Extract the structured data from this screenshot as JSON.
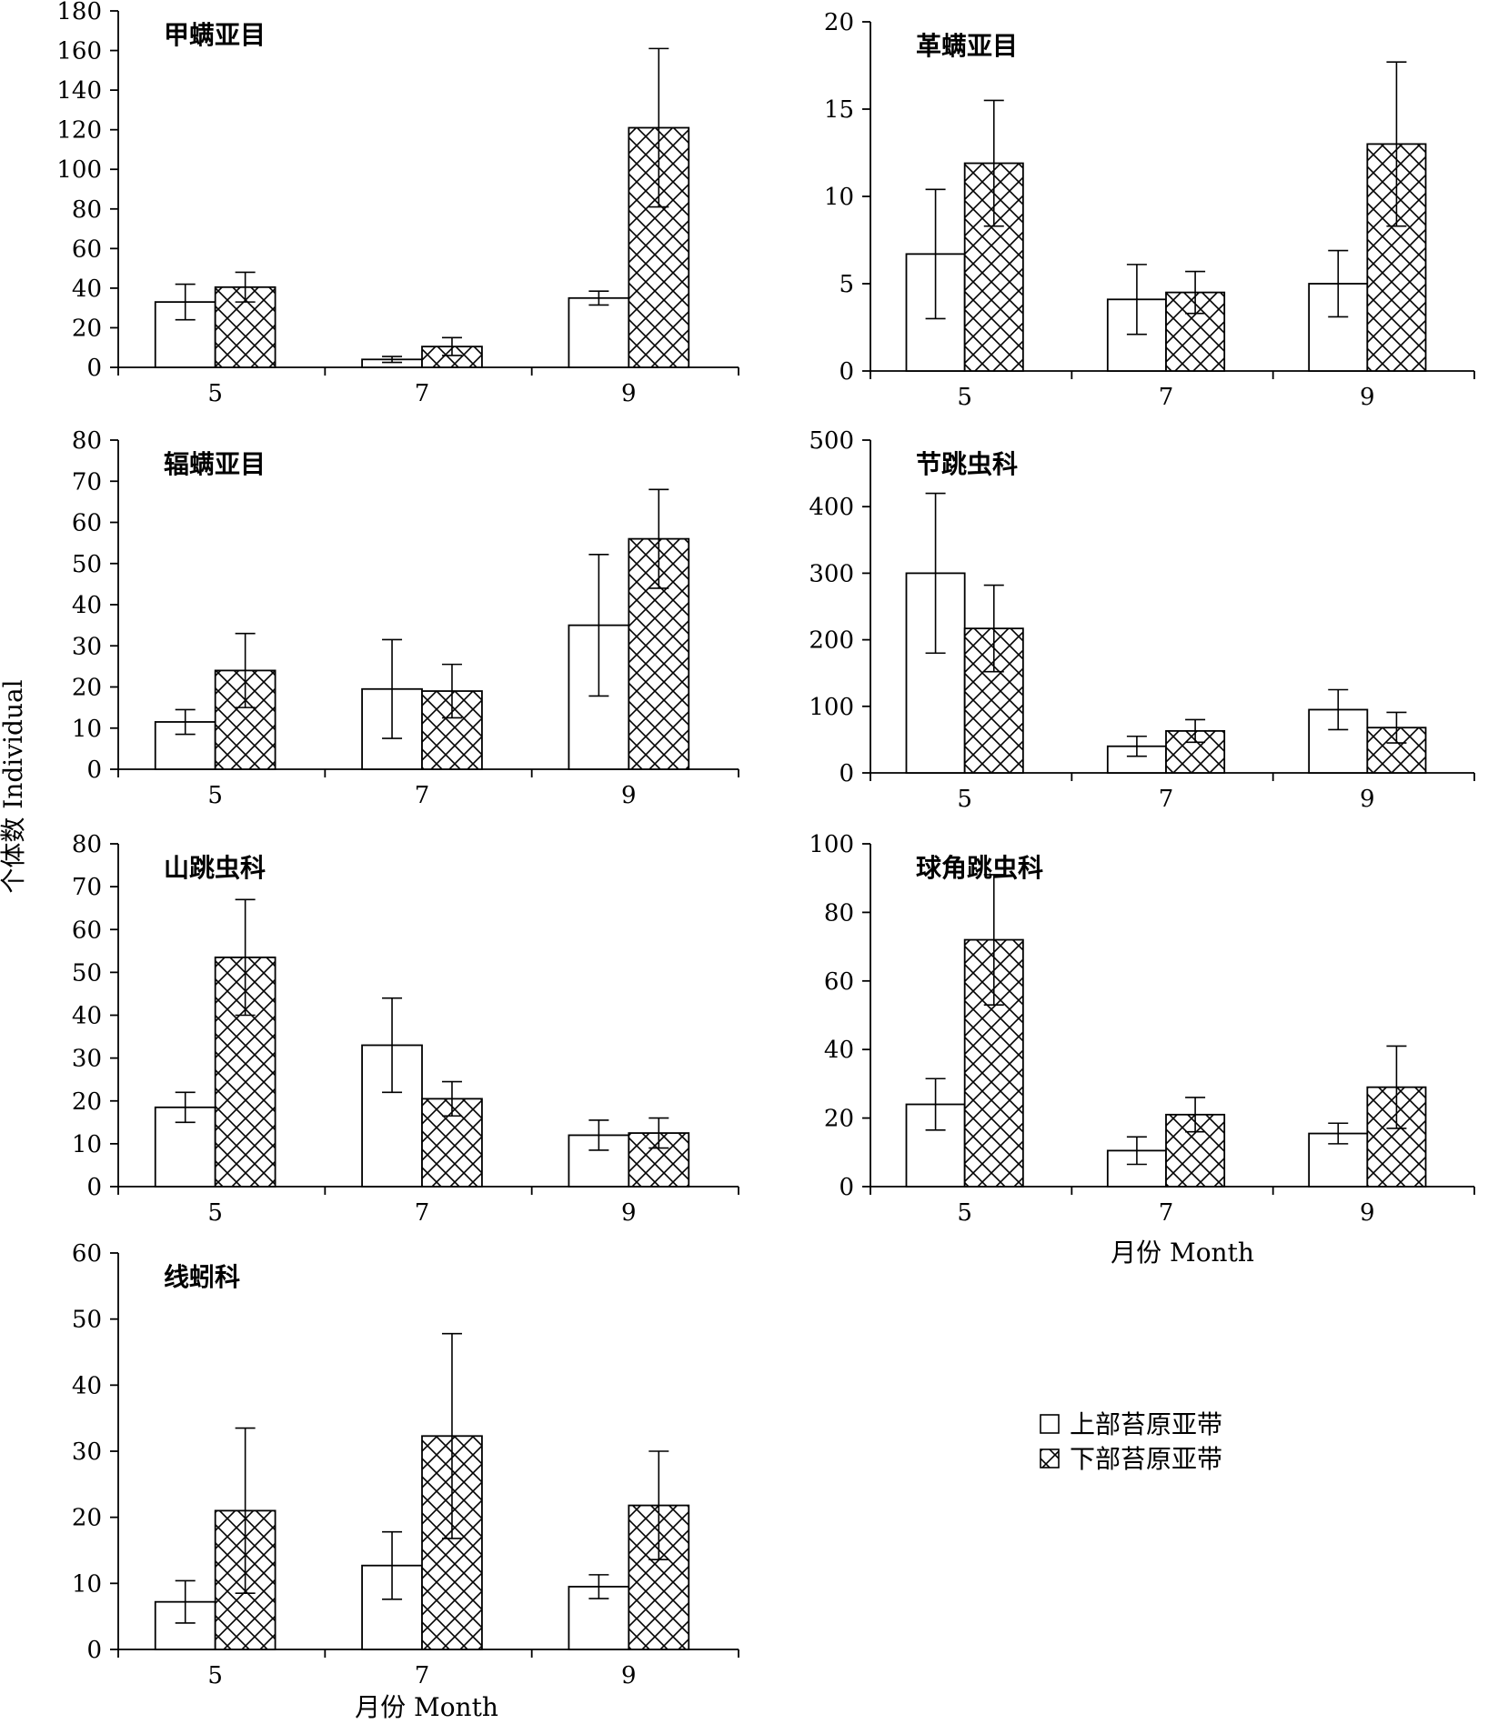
{
  "figure": {
    "ylabel": "个体数 Individual",
    "xlabel": "月份 Month",
    "legend": {
      "placement": "bottom-right",
      "items": [
        {
          "label": "上部苔原亚带",
          "pattern": "open"
        },
        {
          "label": "下部苔原亚带",
          "pattern": "crosshatch"
        }
      ]
    }
  },
  "chart_data": [
    {
      "type": "bar",
      "title": "甲螨亚目",
      "categories": [
        "5",
        "7",
        "9"
      ],
      "ylim": [
        0,
        180
      ],
      "yticks": [
        0,
        20,
        40,
        60,
        80,
        100,
        120,
        140,
        160,
        180
      ],
      "series": [
        {
          "name": "上部苔原亚带",
          "values": [
            33,
            4,
            35
          ],
          "errors": [
            9,
            1.5,
            3.5
          ]
        },
        {
          "name": "下部苔原亚带",
          "values": [
            40.5,
            10.5,
            121
          ],
          "errors": [
            7.5,
            4.5,
            40
          ]
        }
      ]
    },
    {
      "type": "bar",
      "title": "革螨亚目",
      "categories": [
        "5",
        "7",
        "9"
      ],
      "ylim": [
        0,
        20
      ],
      "yticks": [
        0,
        5,
        10,
        15,
        20
      ],
      "series": [
        {
          "name": "上部苔原亚带",
          "values": [
            6.7,
            4.1,
            5
          ],
          "errors": [
            3.7,
            2,
            1.9
          ]
        },
        {
          "name": "下部苔原亚带",
          "values": [
            11.9,
            4.5,
            13
          ],
          "errors": [
            3.6,
            1.2,
            4.7
          ]
        }
      ]
    },
    {
      "type": "bar",
      "title": "辐螨亚目",
      "categories": [
        "5",
        "7",
        "9"
      ],
      "ylim": [
        0,
        80
      ],
      "yticks": [
        0,
        10,
        20,
        30,
        40,
        50,
        60,
        70,
        80
      ],
      "series": [
        {
          "name": "上部苔原亚带",
          "values": [
            11.5,
            19.5,
            35
          ],
          "errors": [
            3,
            12,
            17.2
          ]
        },
        {
          "name": "下部苔原亚带",
          "values": [
            24,
            19,
            56
          ],
          "errors": [
            9,
            6.5,
            12
          ]
        }
      ]
    },
    {
      "type": "bar",
      "title": "节跳虫科",
      "categories": [
        "5",
        "7",
        "9"
      ],
      "ylim": [
        0,
        500
      ],
      "yticks": [
        0,
        100,
        200,
        300,
        400,
        500
      ],
      "series": [
        {
          "name": "上部苔原亚带",
          "values": [
            300,
            40,
            95
          ],
          "errors": [
            120,
            15,
            30
          ]
        },
        {
          "name": "下部苔原亚带",
          "values": [
            217,
            63,
            68
          ],
          "errors": [
            65,
            17,
            23
          ]
        }
      ]
    },
    {
      "type": "bar",
      "title": "山跳虫科",
      "categories": [
        "5",
        "7",
        "9"
      ],
      "ylim": [
        0,
        80
      ],
      "yticks": [
        0,
        10,
        20,
        30,
        40,
        50,
        60,
        70,
        80
      ],
      "series": [
        {
          "name": "上部苔原亚带",
          "values": [
            18.5,
            33,
            12
          ],
          "errors": [
            3.5,
            11,
            3.5
          ]
        },
        {
          "name": "下部苔原亚带",
          "values": [
            53.5,
            20.5,
            12.5
          ],
          "errors": [
            13.5,
            4,
            3.5
          ]
        }
      ]
    },
    {
      "type": "bar",
      "title": "球角跳虫科",
      "categories": [
        "5",
        "7",
        "9"
      ],
      "ylim": [
        0,
        100
      ],
      "yticks": [
        0,
        20,
        40,
        60,
        80,
        100
      ],
      "series": [
        {
          "name": "上部苔原亚带",
          "values": [
            24,
            10.5,
            15.5
          ],
          "errors": [
            7.5,
            4,
            3
          ]
        },
        {
          "name": "下部苔原亚带",
          "values": [
            72,
            21,
            29
          ],
          "errors": [
            19,
            5,
            12
          ]
        }
      ]
    },
    {
      "type": "bar",
      "title": "线蚓科",
      "categories": [
        "5",
        "7",
        "9"
      ],
      "ylim": [
        0,
        60
      ],
      "yticks": [
        0,
        10,
        20,
        30,
        40,
        50,
        60
      ],
      "series": [
        {
          "name": "上部苔原亚带",
          "values": [
            7.2,
            12.7,
            9.5
          ],
          "errors": [
            3.2,
            5.1,
            1.8
          ]
        },
        {
          "name": "下部苔原亚带",
          "values": [
            21,
            32.3,
            21.8
          ],
          "errors": [
            12.5,
            15.5,
            8.2
          ]
        }
      ]
    }
  ]
}
